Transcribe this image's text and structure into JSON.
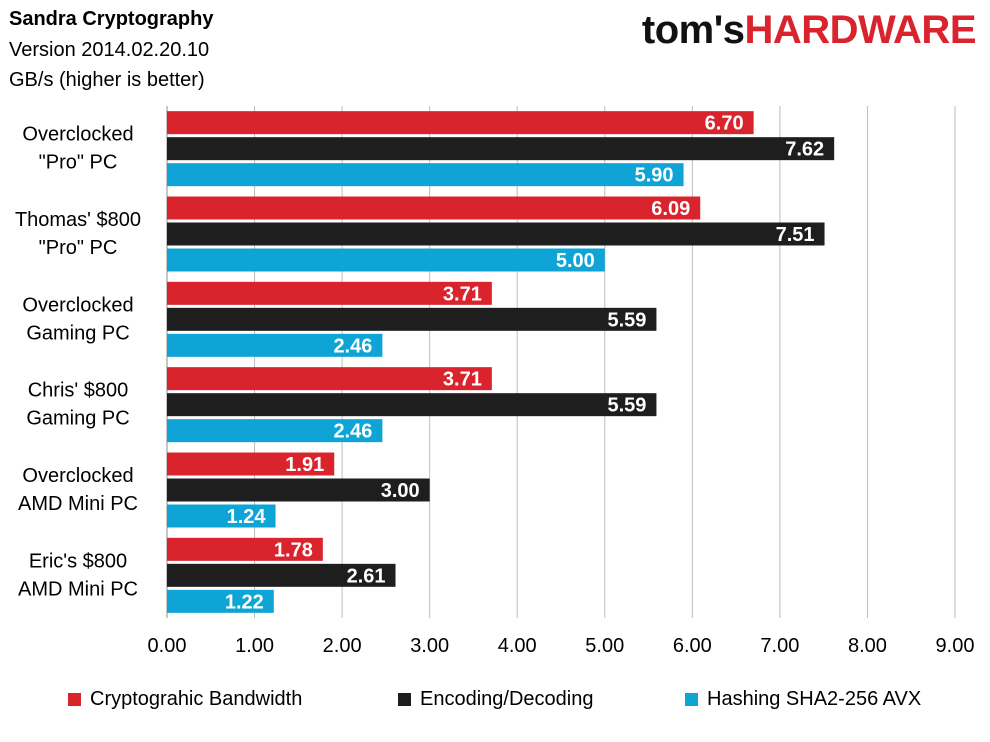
{
  "header": {
    "title": "Sandra Cryptography",
    "subtitle_version": "Version 2014.02.20.10",
    "subtitle_units": "GB/s (higher is better)"
  },
  "logo": {
    "part1": "tom's",
    "part2": "HARDWARE"
  },
  "chart_data": {
    "type": "bar",
    "orientation": "horizontal",
    "title": "Sandra Cryptography",
    "xlabel": "",
    "ylabel": "",
    "xlim": [
      0,
      9
    ],
    "x_ticks": [
      "0.00",
      "1.00",
      "2.00",
      "3.00",
      "4.00",
      "5.00",
      "6.00",
      "7.00",
      "8.00",
      "9.00"
    ],
    "grid": "vertical",
    "legend_position": "bottom",
    "categories": [
      [
        "Overclocked",
        "\"Pro\" PC"
      ],
      [
        "Thomas' $800",
        "\"Pro\" PC"
      ],
      [
        "Overclocked",
        "Gaming PC"
      ],
      [
        "Chris' $800",
        "Gaming PC"
      ],
      [
        "Overclocked",
        "AMD Mini PC"
      ],
      [
        "Eric's $800",
        "AMD Mini PC"
      ]
    ],
    "series": [
      {
        "name": "Cryptograhic Bandwidth",
        "color": "#d9232d",
        "values": [
          6.7,
          6.09,
          3.71,
          3.71,
          1.91,
          1.78
        ],
        "labels": [
          "6.70",
          "6.09",
          "3.71",
          "3.71",
          "1.91",
          "1.78"
        ]
      },
      {
        "name": "Encoding/Decoding",
        "color": "#1e1e1e",
        "values": [
          7.62,
          7.51,
          5.59,
          5.59,
          3.0,
          2.61
        ],
        "labels": [
          "7.62",
          "7.51",
          "5.59",
          "5.59",
          "3.00",
          "2.61"
        ]
      },
      {
        "name": "Hashing SHA2-256 AVX",
        "color": "#0ea5d6",
        "values": [
          5.9,
          5.0,
          2.46,
          2.46,
          1.24,
          1.22
        ],
        "labels": [
          "5.90",
          "5.00",
          "2.46",
          "2.46",
          "1.24",
          "1.22"
        ]
      }
    ]
  }
}
